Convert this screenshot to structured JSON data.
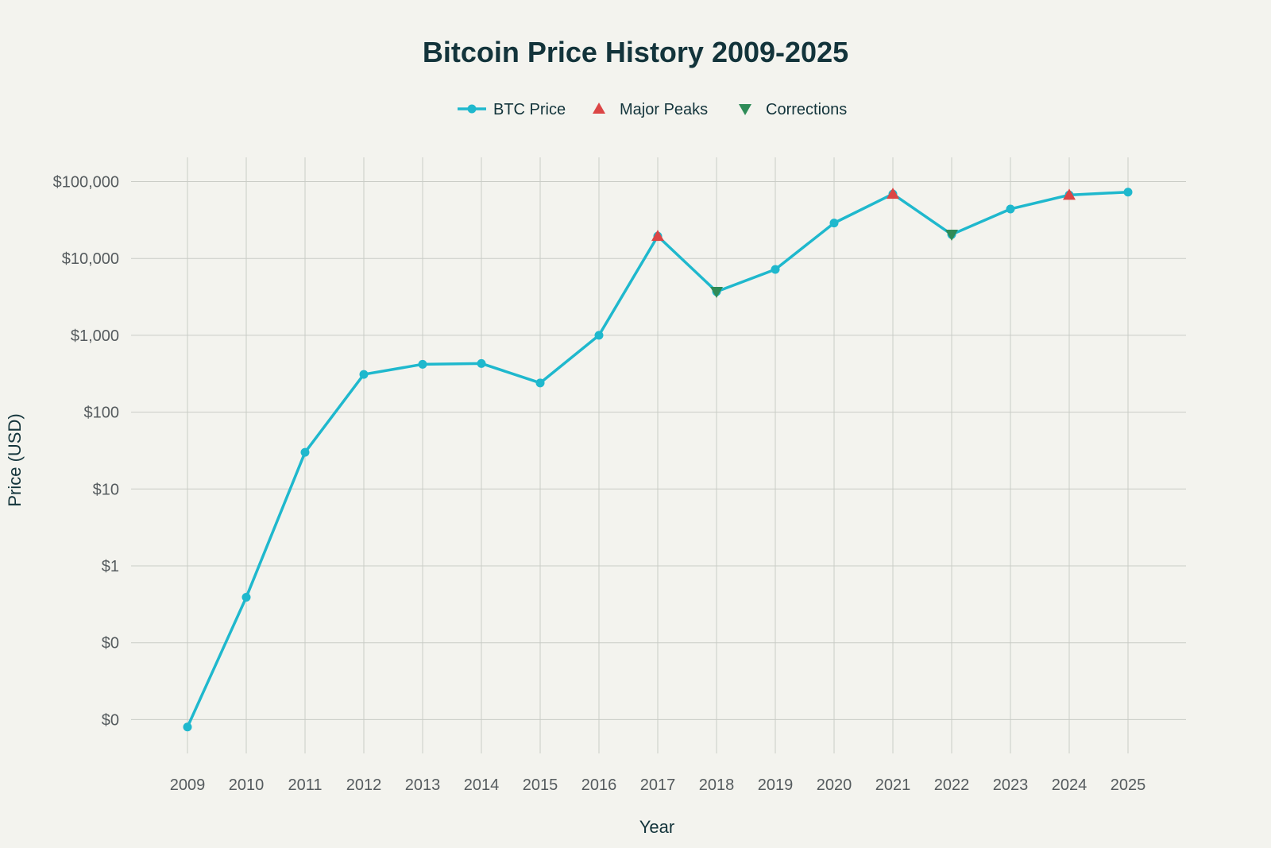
{
  "chart_data": {
    "type": "line",
    "title": "Bitcoin Price History 2009-2025",
    "xlabel": "Year",
    "ylabel": "Price (USD)",
    "y_scale": "log",
    "grid": true,
    "legend_position": "top-center",
    "x": [
      2009,
      2010,
      2011,
      2012,
      2013,
      2014,
      2015,
      2016,
      2017,
      2018,
      2019,
      2020,
      2021,
      2022,
      2023,
      2024,
      2025
    ],
    "x_tick_labels": [
      "2009",
      "2010",
      "2011",
      "2012",
      "2013",
      "2014",
      "2015",
      "2016",
      "2017",
      "2018",
      "2019",
      "2020",
      "2021",
      "2022",
      "2023",
      "2024",
      "2025"
    ],
    "y_tick_values": [
      0.01,
      0.1,
      1,
      10,
      100,
      1000,
      10000,
      100000
    ],
    "y_tick_labels": [
      "$0",
      "$0",
      "$1",
      "$10",
      "$100",
      "$1,000",
      "$10,000",
      "$100,000"
    ],
    "series": [
      {
        "name": "BTC Price",
        "kind": "line+markers",
        "color": "#1fb8cd",
        "values": [
          0.008,
          0.39,
          30,
          310,
          420,
          430,
          240,
          1000,
          19500,
          3700,
          7200,
          28900,
          69000,
          20500,
          44000,
          67000,
          73000
        ]
      },
      {
        "name": "Major Peaks",
        "kind": "markers",
        "marker": "triangle-up",
        "color": "#db4545",
        "x": [
          2017,
          2021,
          2024
        ],
        "values": [
          19500,
          69000,
          67000
        ]
      },
      {
        "name": "Corrections",
        "kind": "markers",
        "marker": "triangle-down",
        "color": "#2e8b57",
        "x": [
          2018,
          2022
        ],
        "values": [
          3700,
          20500
        ]
      }
    ]
  }
}
